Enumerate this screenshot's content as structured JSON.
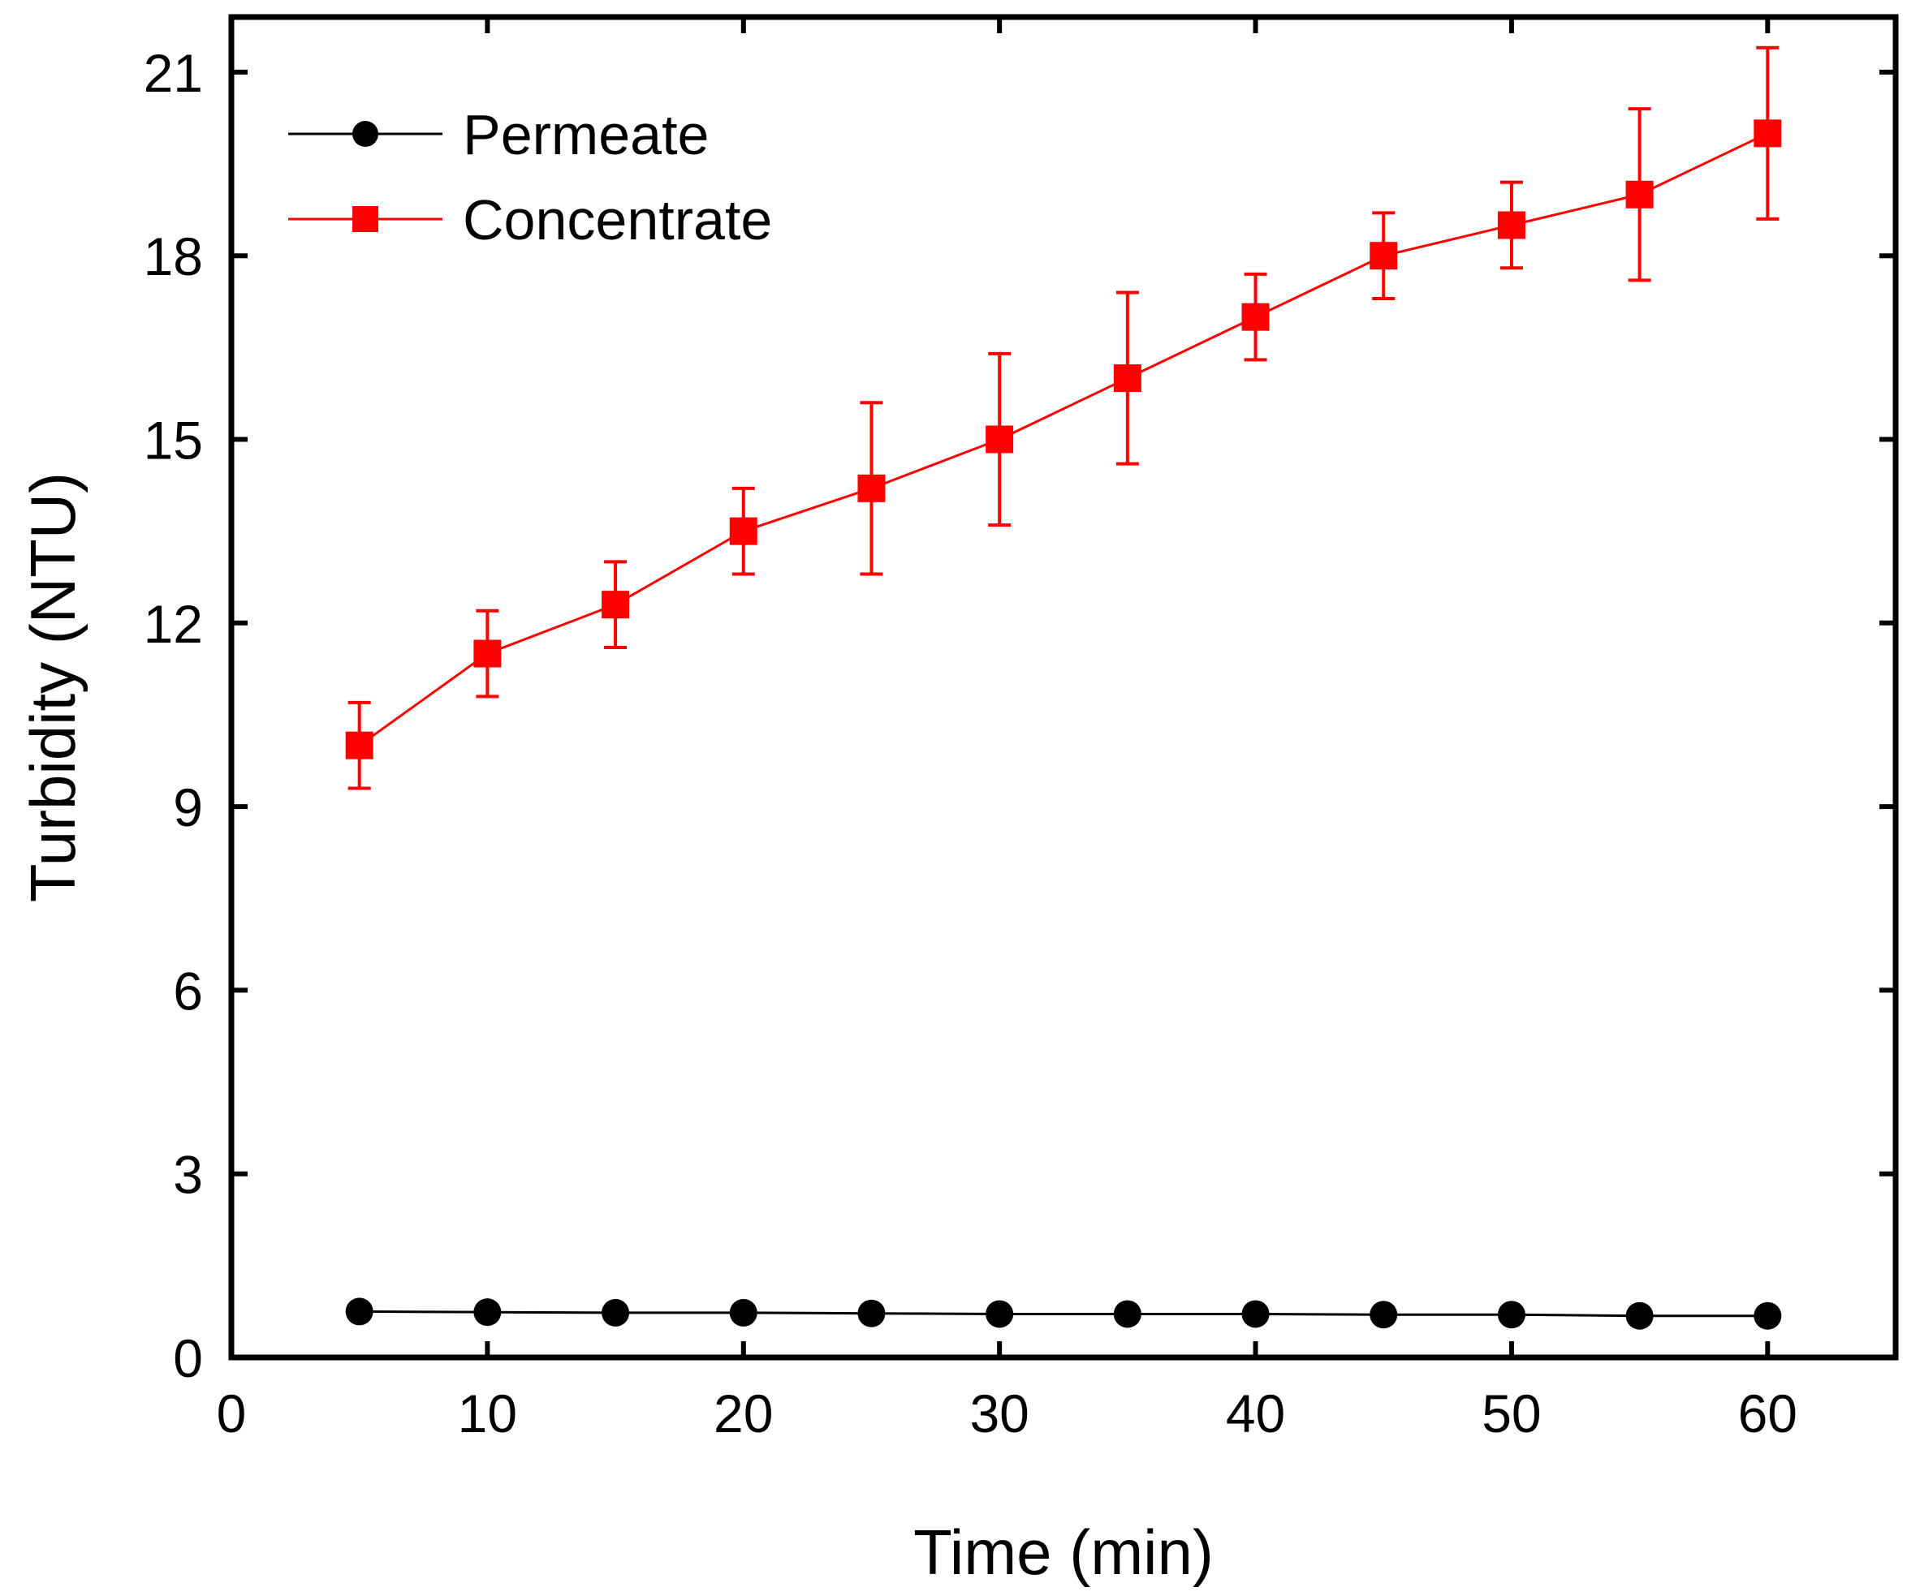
{
  "chart_data": {
    "type": "line",
    "title": "",
    "xlabel": "Time (min)",
    "ylabel": "Turbidity (NTU)",
    "xlim": [
      0,
      65
    ],
    "ylim": [
      0,
      21.9
    ],
    "xticks": [
      0,
      10,
      20,
      30,
      40,
      50,
      60
    ],
    "yticks": [
      0,
      3,
      6,
      9,
      12,
      15,
      18,
      21
    ],
    "grid": false,
    "legend_position": "top-left",
    "series": [
      {
        "name": "Permeate",
        "color": "#000000",
        "marker": "circle",
        "x": [
          5,
          10,
          15,
          20,
          25,
          30,
          35,
          40,
          45,
          50,
          55,
          60
        ],
        "y": [
          0.75,
          0.74,
          0.73,
          0.73,
          0.72,
          0.71,
          0.71,
          0.71,
          0.7,
          0.7,
          0.68,
          0.68
        ],
        "error": [
          0,
          0,
          0,
          0,
          0,
          0,
          0,
          0,
          0,
          0,
          0,
          0
        ]
      },
      {
        "name": "Concentrate",
        "color": "#ff0000",
        "marker": "square",
        "x": [
          5,
          10,
          15,
          20,
          25,
          30,
          35,
          40,
          45,
          50,
          55,
          60
        ],
        "y": [
          10.0,
          11.5,
          12.3,
          13.5,
          14.2,
          15.0,
          16.0,
          17.0,
          18.0,
          18.5,
          19.0,
          20.0
        ],
        "error": [
          0.7,
          0.7,
          0.7,
          0.7,
          1.4,
          1.4,
          1.4,
          0.7,
          0.7,
          0.7,
          1.4,
          1.4
        ]
      }
    ]
  }
}
